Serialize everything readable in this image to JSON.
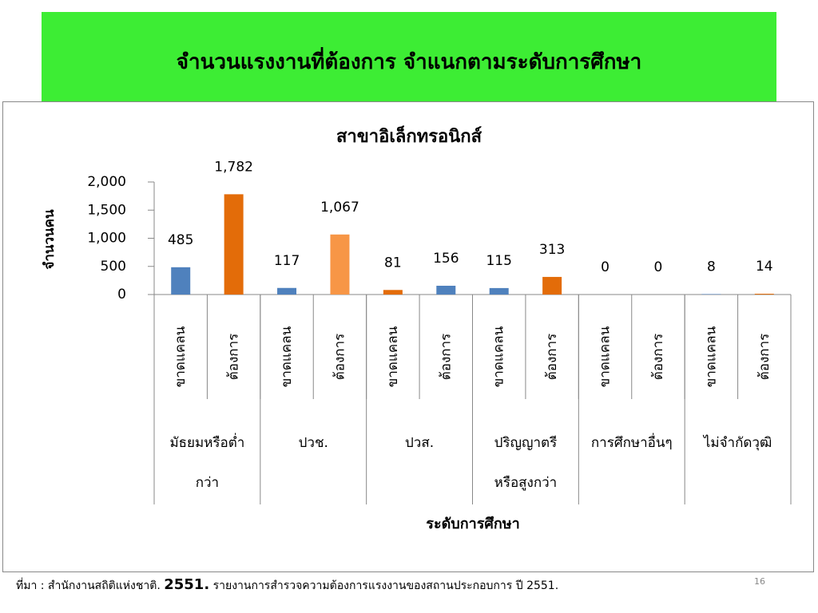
{
  "slide": {
    "title": "จำนวนแรงงานที่ต้องการ จำแนกตามระดับการศึกษา",
    "footer": {
      "source": "ที่มา : สำนักงานสถิติแห่งชาติ.",
      "year": "2551.",
      "rest": "รายงานการสำรวจความต้องการแรงงานของสถานประกอบการ ปี 2551."
    },
    "page_number": "16"
  },
  "chart_data": {
    "type": "bar",
    "title": "สาขาอิเล็กทรอนิกส์",
    "y_label": "จำนวนคน",
    "x_label": "ระดับการศึกษา",
    "categories": [
      "ขาดแคลน",
      "ต้องการ",
      "ขาดแคลน",
      "ต้องการ",
      "ขาดแคลน",
      "ต้องการ",
      "ขาดแคลน",
      "ต้องการ",
      "ขาดแคลน",
      "ต้องการ",
      "ขาดแคลน",
      "ต้องการ"
    ],
    "groups": [
      [
        "มัธยมหรือต่ำ",
        "กว่า"
      ],
      [
        "ปวช."
      ],
      [
        "ปวส."
      ],
      [
        "ปริญญาตรี",
        "หรือสูงกว่า"
      ],
      [
        "การศึกษาอื่นๆ"
      ],
      [
        "ไม่จำกัดวุฒิ"
      ]
    ],
    "values": [
      485,
      1782,
      117,
      1067,
      81,
      156,
      115,
      313,
      0,
      0,
      8,
      14
    ],
    "value_labels": [
      "485",
      "1,782",
      "117",
      "1,067",
      "81",
      "156",
      "115",
      "313",
      "0",
      "0",
      "8",
      "14"
    ],
    "colors": [
      "#4f81bd",
      "#e36c09",
      "#4f81bd",
      "#f79646",
      "#e36c09",
      "#4f81bd",
      "#4f81bd",
      "#e36c09",
      "#4f81bd",
      "#e36c09",
      "#4f81bd",
      "#e36c09"
    ],
    "ylim": [
      0,
      2000
    ],
    "yticks": [
      0,
      500,
      {
        "value": 1000,
        "label": "1,000"
      },
      {
        "value": 1500,
        "label": "1,500"
      },
      {
        "value": 2000,
        "label": "2,000"
      }
    ],
    "grid": false
  }
}
